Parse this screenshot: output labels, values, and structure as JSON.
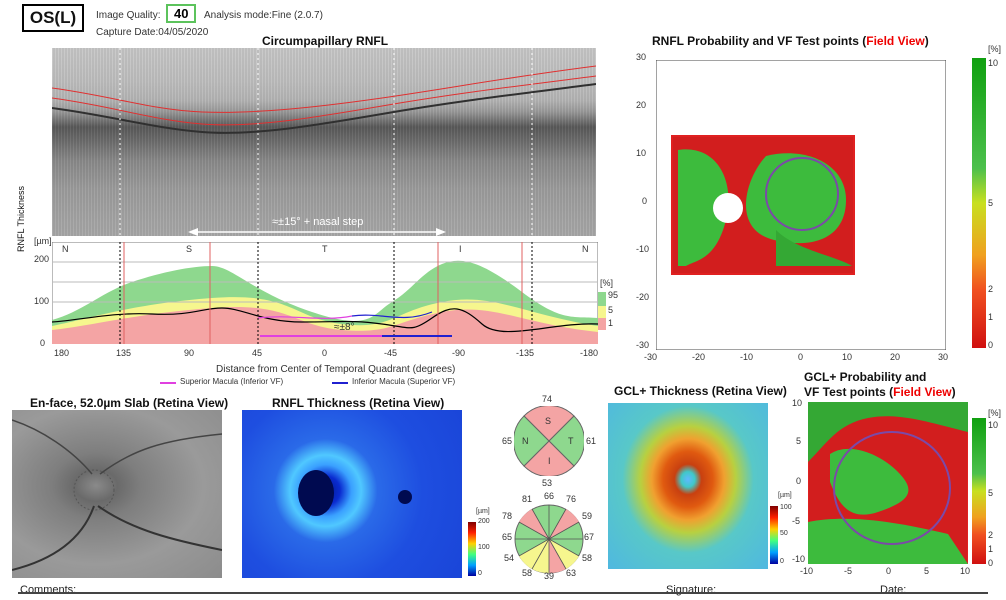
{
  "header": {
    "eye": "OS(L)",
    "quality_label": "Image Quality:",
    "quality_value": "40",
    "analysis_mode": "Analysis mode:Fine (2.0.7)",
    "capture_date": "Capture Date:04/05/2020"
  },
  "rnfl_panel": {
    "title": "Circumpapillary RNFL",
    "bscan_annotation": "≈±15° + nasal step",
    "y_axis_label": "RNFL Thickness",
    "y_unit": "[µm]",
    "y_ticks": [
      "200",
      "100",
      "0"
    ],
    "quadrants": [
      "N",
      "S",
      "T",
      "I",
      "N"
    ],
    "x_ticks": [
      "180",
      "135",
      "90",
      "45",
      "0",
      "-45",
      "-90",
      "-135",
      "-180"
    ],
    "x_axis_title": "Distance from Center of Temporal Quadrant (degrees)",
    "arrow_label": "≈±8°",
    "legend_percent_unit": "[%]",
    "legend_percent": [
      "95",
      "5",
      "1"
    ],
    "legend_superior": "Superior Macula (Inferior VF)",
    "legend_inferior": "Inferior Macula (Superior VF)",
    "colors": {
      "green": "#8ed88e",
      "yellow": "#f6f68e",
      "red": "#f4a4a4",
      "black": "#000000",
      "magenta": "#e040e0",
      "blue": "#2020d0"
    }
  },
  "rnfl_prob": {
    "title_prefix": "RNFL Probability and VF Test points (",
    "title_field": "Field View",
    "title_suffix": ")",
    "x_ticks": [
      "-30",
      "-20",
      "-10",
      "0",
      "10",
      "20",
      "30"
    ],
    "y_ticks": [
      "30",
      "20",
      "10",
      "0",
      "-10",
      "-20",
      "-30"
    ],
    "scale_unit": "[%]",
    "scale_ticks": [
      "10",
      "5",
      "2",
      "1",
      "0"
    ]
  },
  "enface": {
    "title": "En-face, 52.0µm Slab (Retina View)"
  },
  "rnfl_thickness": {
    "title": "RNFL Thickness (Retina View)",
    "scale_unit": "[µm]",
    "scale_ticks": [
      "200",
      "100",
      "0"
    ]
  },
  "quadrant_chart": {
    "labels": {
      "S": "S",
      "N": "N",
      "T": "T",
      "I": "I"
    },
    "values": {
      "S": "74",
      "N": "65",
      "T": "61",
      "I": "53"
    }
  },
  "clock_chart": {
    "values_top": [
      "81",
      "66",
      "76"
    ],
    "values_left": [
      "78",
      "65",
      "54"
    ],
    "values_right": [
      "59",
      "67",
      "58"
    ],
    "values_bottom": [
      "58",
      "39",
      "63"
    ]
  },
  "gcl_thickness": {
    "title": "GCL+ Thickness (Retina View)",
    "scale_unit": "[µm]",
    "scale_ticks": [
      "100",
      "50",
      "0"
    ]
  },
  "gcl_prob": {
    "title_line1": "GCL+ Probability and",
    "title_line2_prefix": "VF Test points (",
    "title_field": "Field View",
    "title_suffix": ")",
    "x_ticks": [
      "-10",
      "-5",
      "0",
      "5",
      "10"
    ],
    "y_ticks": [
      "10",
      "5",
      "0",
      "-5",
      "-10"
    ],
    "scale_unit": "[%]",
    "scale_ticks": [
      "10",
      "5",
      "2",
      "1",
      "0"
    ]
  },
  "footer": {
    "comments": "Comments:",
    "signature": "Signature:",
    "date": "Date:"
  }
}
